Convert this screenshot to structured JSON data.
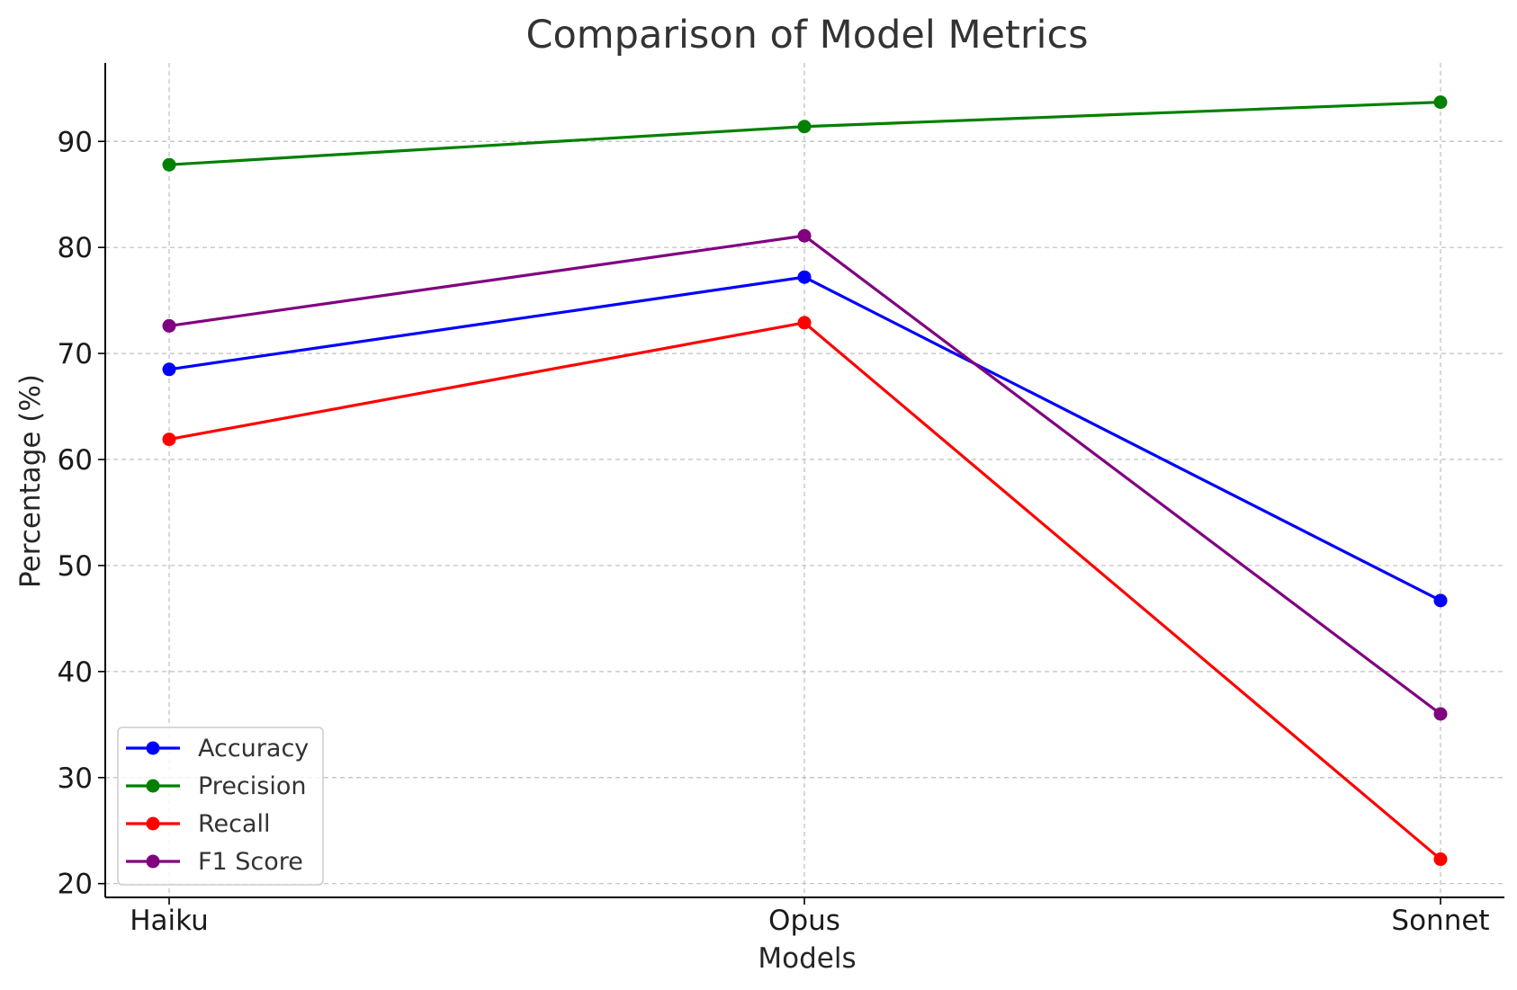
{
  "chart_data": {
    "type": "line",
    "title": "Comparison of Model Metrics",
    "xlabel": "Models",
    "ylabel": "Percentage (%)",
    "categories": [
      "Haiku",
      "Opus",
      "Sonnet"
    ],
    "ylim": [
      18.7,
      97.4
    ],
    "yticks": [
      20,
      30,
      40,
      50,
      60,
      70,
      80,
      90
    ],
    "grid": true,
    "legend_position": "lower-left",
    "marker": "circle",
    "series": [
      {
        "name": "Accuracy",
        "color": "#0000ff",
        "values": [
          68.5,
          77.2,
          46.7
        ]
      },
      {
        "name": "Precision",
        "color": "#008000",
        "values": [
          87.8,
          91.4,
          93.7
        ]
      },
      {
        "name": "Recall",
        "color": "#ff0000",
        "values": [
          61.9,
          72.9,
          22.3
        ]
      },
      {
        "name": "F1 Score",
        "color": "#800080",
        "values": [
          72.6,
          81.1,
          36.0
        ]
      }
    ]
  }
}
